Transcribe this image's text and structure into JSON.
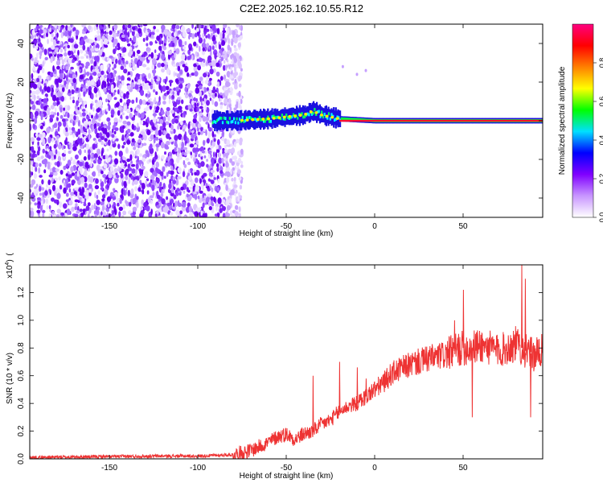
{
  "title": "C2E2.2025.162.10.55.R12",
  "chart_data": [
    {
      "type": "heatmap",
      "xlabel": "Height of straight line (km)",
      "ylabel": "Frequency (Hz)",
      "xlim": [
        -195,
        95
      ],
      "ylim": [
        -50,
        50
      ],
      "xticks": [
        -150,
        -100,
        -50,
        0,
        50
      ],
      "yticks": [
        -40,
        -20,
        0,
        20,
        40
      ],
      "grid": false,
      "noise_region_km": [
        -195,
        -85
      ],
      "trail_start_km": -92,
      "trail_frequency_hz": [
        [
          -90,
          0
        ],
        [
          -80,
          0
        ],
        [
          -70,
          0.5
        ],
        [
          -60,
          1
        ],
        [
          -50,
          2
        ],
        [
          -40,
          3
        ],
        [
          -35,
          5
        ],
        [
          -30,
          3
        ],
        [
          -25,
          2
        ],
        [
          -20,
          1
        ],
        [
          -10,
          0.5
        ],
        [
          0,
          0
        ],
        [
          50,
          0
        ],
        [
          95,
          0
        ]
      ],
      "colorbar": {
        "label": "Normalized spectral amplitude",
        "ticks": [
          0.0,
          0.2,
          0.4,
          0.6,
          0.8
        ],
        "range": [
          0,
          1
        ],
        "colors": [
          "#ffffff",
          "#c896ff",
          "#8000ff",
          "#0000ff",
          "#00e0ff",
          "#00ff00",
          "#ffff00",
          "#ff8000",
          "#ff0000",
          "#ff0080"
        ]
      }
    },
    {
      "type": "line",
      "xlabel": "Height of straight line (km)",
      "ylabel": "SNR (10 * v/v)",
      "multiplier_base": "x10",
      "multiplier_exp": "4",
      "xlim": [
        -195,
        95
      ],
      "ylim": [
        0,
        1.4
      ],
      "xticks": [
        -150,
        -100,
        -50,
        0,
        50
      ],
      "yticks": [
        0.0,
        0.2,
        0.4,
        0.6,
        0.8,
        1.0,
        1.2
      ],
      "color": "#ee3333",
      "x": [
        -195,
        -160,
        -120,
        -100,
        -80,
        -70,
        -60,
        -55,
        -50,
        -45,
        -40,
        -35,
        -30,
        -25,
        -20,
        -15,
        -10,
        -5,
        0,
        5,
        10,
        20,
        30,
        40,
        45,
        50,
        55,
        60,
        65,
        70,
        75,
        80,
        85,
        90,
        95
      ],
      "values": [
        0.01,
        0.015,
        0.02,
        0.02,
        0.03,
        0.06,
        0.12,
        0.16,
        0.18,
        0.14,
        0.18,
        0.2,
        0.25,
        0.28,
        0.34,
        0.38,
        0.4,
        0.45,
        0.5,
        0.55,
        0.62,
        0.68,
        0.72,
        0.75,
        0.78,
        0.8,
        0.8,
        0.82,
        0.8,
        0.78,
        0.8,
        0.83,
        0.78,
        0.75,
        0.78
      ],
      "spikes": [
        [
          50,
          1.22
        ],
        [
          45,
          1.0
        ],
        [
          55,
          0.3
        ],
        [
          83,
          1.4
        ],
        [
          85,
          1.3
        ],
        [
          88,
          0.3
        ],
        [
          -35,
          0.6
        ],
        [
          -20,
          0.7
        ],
        [
          -10,
          0.66
        ],
        [
          -5,
          0.58
        ]
      ]
    }
  ]
}
